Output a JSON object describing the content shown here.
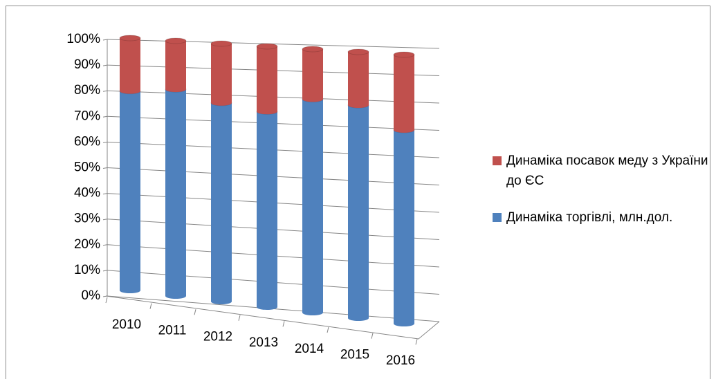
{
  "chart_data": {
    "type": "bar",
    "stacked": true,
    "categories": [
      "2010",
      "2011",
      "2012",
      "2013",
      "2014",
      "2015",
      "2016"
    ],
    "series": [
      {
        "name": "Динаміка торгівлі, млн.дол.",
        "color": "#4f81bd",
        "values": [
          79,
          81,
          77,
          75,
          81,
          80,
          72
        ]
      },
      {
        "name": "Динаміка посавок меду з України до ЄС",
        "color": "#c0504d",
        "values": [
          21,
          19,
          23,
          25,
          19,
          20,
          28
        ]
      }
    ],
    "ylim": [
      0,
      100
    ],
    "yticks": [
      {
        "value": 0,
        "label": "0%"
      },
      {
        "value": 10,
        "label": "10%"
      },
      {
        "value": 20,
        "label": "20%"
      },
      {
        "value": 30,
        "label": "30%"
      },
      {
        "value": 40,
        "label": "40%"
      },
      {
        "value": 50,
        "label": "50%"
      },
      {
        "value": 60,
        "label": "60%"
      },
      {
        "value": 70,
        "label": "70%"
      },
      {
        "value": 80,
        "label": "80%"
      },
      {
        "value": 90,
        "label": "90%"
      },
      {
        "value": 100,
        "label": "100%"
      }
    ],
    "grid": true,
    "legend": "right"
  }
}
